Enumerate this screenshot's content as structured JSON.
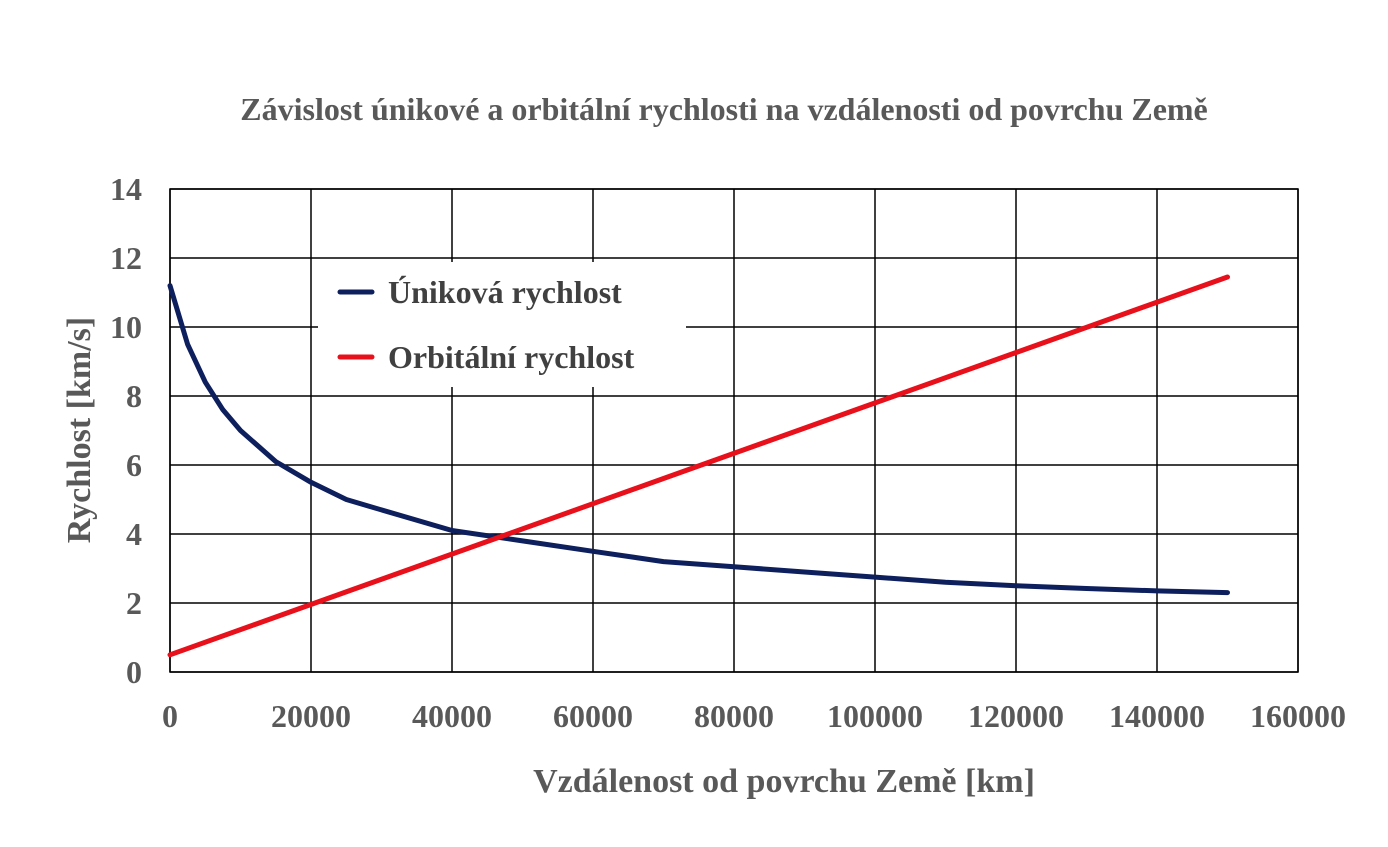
{
  "chart_data": {
    "type": "line",
    "title": "Závislost únikové a orbitální rychlosti na vzdálenosti od povrchu Země",
    "xlabel": "Vzdálenost od povrchu Země [km]",
    "ylabel": "Rychlost [km/s]",
    "xlim": [
      0,
      160000
    ],
    "ylim": [
      0,
      14
    ],
    "xticks": [
      0,
      20000,
      40000,
      60000,
      80000,
      100000,
      120000,
      140000,
      160000
    ],
    "xtick_labels": [
      "0",
      "20000",
      "40000",
      "60000",
      "80000",
      "100000",
      "120000",
      "140000",
      "160000"
    ],
    "yticks": [
      0,
      2,
      4,
      6,
      8,
      10,
      12,
      14
    ],
    "ytick_labels": [
      "0",
      "2",
      "4",
      "6",
      "8",
      "10",
      "12",
      "14"
    ],
    "grid": true,
    "legend_position": "top-left",
    "series": [
      {
        "name": "Úniková rychlost",
        "color": "#0d1f5c",
        "x": [
          0,
          2500,
          5000,
          7500,
          10000,
          15000,
          20000,
          25000,
          30000,
          40000,
          50000,
          60000,
          70000,
          80000,
          90000,
          100000,
          110000,
          120000,
          130000,
          140000,
          150000
        ],
        "y": [
          11.2,
          9.5,
          8.4,
          7.6,
          7.0,
          6.1,
          5.5,
          5.0,
          4.7,
          4.1,
          3.8,
          3.5,
          3.2,
          3.05,
          2.9,
          2.75,
          2.6,
          2.5,
          2.42,
          2.35,
          2.3
        ]
      },
      {
        "name": "Orbitální rychlost",
        "color": "#e8101a",
        "x": [
          0,
          150000
        ],
        "y": [
          0.5,
          11.45
        ]
      }
    ]
  }
}
